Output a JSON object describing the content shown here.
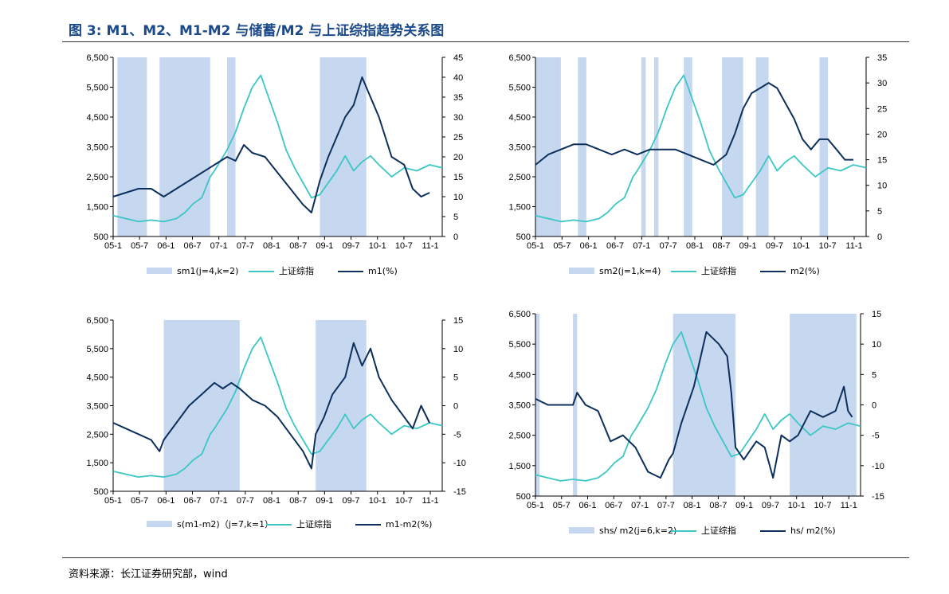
{
  "header": {
    "title": "图 3: M1、M2、M1-M2 与储蓄/M2 与上证综指趋势关系图"
  },
  "footer": {
    "source": "资料来源：长江证券研究部，wind"
  },
  "colors": {
    "shade": "#c6d8ef",
    "index_line": "#3cc6c6",
    "ratio_line": "#0d2f5c",
    "title": "#1b4a8a"
  },
  "chart_data": [
    {
      "id": "sm1",
      "type": "line",
      "x_ticks": [
        "05-1",
        "05-7",
        "06-1",
        "06-7",
        "07-1",
        "07-7",
        "08-1",
        "08-7",
        "09-1",
        "09-7",
        "10-1",
        "10-7",
        "11-1"
      ],
      "x_range": [
        0,
        78
      ],
      "left_axis": {
        "range": [
          500,
          6500
        ],
        "ticks": [
          "500",
          "1,500",
          "2,500",
          "3,500",
          "4,500",
          "5,500",
          "6,500"
        ]
      },
      "right_axis": {
        "range": [
          0,
          45
        ],
        "ticks": [
          "0",
          "5",
          "10",
          "15",
          "20",
          "25",
          "30",
          "35",
          "40",
          "45"
        ]
      },
      "legend": [
        "sm1(j=4,k=2)",
        "上证综指",
        "m1(%)"
      ],
      "shaded_periods": [
        [
          1,
          8
        ],
        [
          11,
          23
        ],
        [
          27,
          29
        ],
        [
          49,
          60
        ]
      ],
      "index_series": {
        "name": "上证综指",
        "axis": "left",
        "x": [
          0,
          3,
          6,
          9,
          12,
          15,
          17,
          19,
          21,
          23,
          24,
          27,
          29,
          31,
          33,
          35,
          37,
          39,
          41,
          43,
          45,
          47,
          49,
          51,
          53,
          55,
          57,
          59,
          61,
          63,
          66,
          69,
          72,
          75,
          78
        ],
        "values": [
          1200,
          1100,
          1000,
          1050,
          1000,
          1100,
          1300,
          1600,
          1800,
          2500,
          2700,
          3400,
          4000,
          4800,
          5500,
          5900,
          5100,
          4300,
          3400,
          2800,
          2300,
          1800,
          1900,
          2300,
          2700,
          3200,
          2700,
          3000,
          3200,
          2900,
          2500,
          2800,
          2700,
          2900,
          2800
        ]
      },
      "ratio_series": {
        "name": "m1(%)",
        "axis": "right",
        "x": [
          0,
          3,
          6,
          9,
          12,
          15,
          18,
          21,
          24,
          27,
          29,
          31,
          33,
          36,
          39,
          42,
          45,
          47,
          49,
          51,
          53,
          55,
          57,
          59,
          61,
          63,
          66,
          69,
          71,
          73,
          75
        ],
        "values": [
          10,
          11,
          12,
          12,
          10,
          12,
          14,
          16,
          18,
          20,
          19,
          23,
          21,
          20,
          16,
          12,
          8,
          6,
          14,
          20,
          25,
          30,
          33,
          40,
          35,
          30,
          20,
          18,
          12,
          10,
          11
        ]
      }
    },
    {
      "id": "sm2",
      "type": "line",
      "x_ticks": [
        "05-1",
        "05-7",
        "06-1",
        "06-7",
        "07-1",
        "07-7",
        "08-1",
        "08-7",
        "09-1",
        "09-7",
        "10-1",
        "10-7",
        "11-1"
      ],
      "x_range": [
        0,
        78
      ],
      "left_axis": {
        "range": [
          500,
          6500
        ],
        "ticks": [
          "500",
          "1,500",
          "2,500",
          "3,500",
          "4,500",
          "5,500",
          "6,500"
        ]
      },
      "right_axis": {
        "range": [
          0,
          35
        ],
        "ticks": [
          "0",
          "5",
          "10",
          "15",
          "20",
          "25",
          "30",
          "35"
        ]
      },
      "legend": [
        "sm2(j=1,k=4)",
        "上证综指",
        "m2(%)"
      ],
      "shaded_periods": [
        [
          0,
          6
        ],
        [
          10,
          12
        ],
        [
          25,
          26
        ],
        [
          28,
          29
        ],
        [
          35,
          37
        ],
        [
          44,
          49
        ],
        [
          52,
          55
        ],
        [
          67,
          69
        ]
      ],
      "index_series": {
        "name": "上证综指",
        "axis": "left",
        "x": [
          0,
          3,
          6,
          9,
          12,
          15,
          17,
          19,
          21,
          23,
          24,
          27,
          29,
          31,
          33,
          35,
          37,
          39,
          41,
          43,
          45,
          47,
          49,
          51,
          53,
          55,
          57,
          59,
          61,
          63,
          66,
          69,
          72,
          75,
          78
        ],
        "values": [
          1200,
          1100,
          1000,
          1050,
          1000,
          1100,
          1300,
          1600,
          1800,
          2500,
          2700,
          3400,
          4000,
          4800,
          5500,
          5900,
          5100,
          4300,
          3400,
          2800,
          2300,
          1800,
          1900,
          2300,
          2700,
          3200,
          2700,
          3000,
          3200,
          2900,
          2500,
          2800,
          2700,
          2900,
          2800
        ]
      },
      "ratio_series": {
        "name": "m2(%)",
        "axis": "right",
        "x": [
          0,
          3,
          6,
          9,
          12,
          15,
          18,
          21,
          24,
          27,
          30,
          33,
          36,
          39,
          42,
          45,
          47,
          49,
          51,
          53,
          55,
          57,
          59,
          61,
          63,
          65,
          67,
          69,
          71,
          73,
          75
        ],
        "values": [
          14,
          16,
          17,
          18,
          18,
          17,
          16,
          17,
          16,
          17,
          17,
          17,
          16,
          15,
          14,
          16,
          20,
          25,
          28,
          29,
          30,
          29,
          26,
          23,
          19,
          17,
          19,
          19,
          17,
          15,
          15
        ]
      }
    },
    {
      "id": "m1m2",
      "type": "line",
      "x_ticks": [
        "05-1",
        "05-7",
        "06-1",
        "06-7",
        "07-1",
        "07-7",
        "08-1",
        "08-7",
        "09-1",
        "09-7",
        "10-1",
        "10-7",
        "11-1"
      ],
      "x_range": [
        0,
        78
      ],
      "left_axis": {
        "range": [
          500,
          6500
        ],
        "ticks": [
          "500",
          "1,500",
          "2,500",
          "3,500",
          "4,500",
          "5,500",
          "6,500"
        ]
      },
      "right_axis": {
        "range": [
          -15,
          15
        ],
        "ticks": [
          "-15",
          "-10",
          "-5",
          "0",
          "5",
          "10",
          "15"
        ]
      },
      "legend": [
        "s(m1-m2)（j=7,k=1）",
        "上证综指",
        "m1-m2(%)"
      ],
      "shaded_periods": [
        [
          12,
          30
        ],
        [
          48,
          60
        ]
      ],
      "index_series": {
        "name": "上证综指",
        "axis": "left",
        "x": [
          0,
          3,
          6,
          9,
          12,
          15,
          17,
          19,
          21,
          23,
          24,
          27,
          29,
          31,
          33,
          35,
          37,
          39,
          41,
          43,
          45,
          47,
          49,
          51,
          53,
          55,
          57,
          59,
          61,
          63,
          66,
          69,
          72,
          75,
          78
        ],
        "values": [
          1200,
          1100,
          1000,
          1050,
          1000,
          1100,
          1300,
          1600,
          1800,
          2500,
          2700,
          3400,
          4000,
          4800,
          5500,
          5900,
          5100,
          4300,
          3400,
          2800,
          2300,
          1800,
          1900,
          2300,
          2700,
          3200,
          2700,
          3000,
          3200,
          2900,
          2500,
          2800,
          2700,
          2900,
          2800
        ]
      },
      "ratio_series": {
        "name": "m1-m2(%)",
        "axis": "right",
        "x": [
          0,
          3,
          6,
          9,
          11,
          12,
          15,
          18,
          21,
          24,
          26,
          28,
          30,
          33,
          36,
          39,
          42,
          45,
          47,
          48,
          50,
          52,
          55,
          57,
          59,
          61,
          63,
          66,
          69,
          71,
          73,
          75
        ],
        "values": [
          -3,
          -4,
          -5,
          -6,
          -8,
          -6,
          -3,
          0,
          2,
          4,
          3,
          4,
          3,
          1,
          0,
          -2,
          -5,
          -8,
          -11,
          -5,
          -2,
          2,
          5,
          11,
          7,
          10,
          5,
          1,
          -2,
          -4,
          0,
          -3
        ]
      }
    },
    {
      "id": "hsm2",
      "type": "line",
      "x_ticks": [
        "05-1",
        "05-7",
        "06-1",
        "06-7",
        "07-1",
        "07-7",
        "08-1",
        "08-7",
        "09-1",
        "09-7",
        "10-1",
        "10-7",
        "11-1"
      ],
      "x_range": [
        0,
        78
      ],
      "left_axis": {
        "range": [
          500,
          6500
        ],
        "ticks": [
          "500",
          "1,500",
          "2,500",
          "3,500",
          "4,500",
          "5,500",
          "6,500"
        ]
      },
      "right_axis": {
        "range": [
          -15,
          15
        ],
        "ticks": [
          "-15",
          "-10",
          "-5",
          "0",
          "5",
          "10",
          "15"
        ]
      },
      "legend": [
        "shs/ m2(j=6,k=2)",
        "上证综指",
        "hs/ m2(%)"
      ],
      "shaded_periods": [
        [
          0,
          1
        ],
        [
          9,
          10
        ],
        [
          33,
          48
        ],
        [
          61,
          77
        ]
      ],
      "index_series": {
        "name": "上证综指",
        "axis": "left",
        "x": [
          0,
          3,
          6,
          9,
          12,
          15,
          17,
          19,
          21,
          23,
          24,
          27,
          29,
          31,
          33,
          35,
          37,
          39,
          41,
          43,
          45,
          47,
          49,
          51,
          53,
          55,
          57,
          59,
          61,
          63,
          66,
          69,
          72,
          75,
          78
        ],
        "values": [
          1200,
          1100,
          1000,
          1050,
          1000,
          1100,
          1300,
          1600,
          1800,
          2500,
          2700,
          3400,
          4000,
          4800,
          5500,
          5900,
          5100,
          4300,
          3400,
          2800,
          2300,
          1800,
          1900,
          2300,
          2700,
          3200,
          2700,
          3000,
          3200,
          2900,
          2500,
          2800,
          2700,
          2900,
          2800
        ]
      },
      "ratio_series": {
        "name": "hs/ m2(%)",
        "axis": "right",
        "x": [
          0,
          3,
          6,
          9,
          10,
          12,
          15,
          18,
          21,
          24,
          27,
          30,
          32,
          33,
          35,
          38,
          41,
          44,
          46,
          47,
          48,
          50,
          53,
          55,
          57,
          59,
          61,
          63,
          66,
          69,
          72,
          74,
          75,
          76
        ],
        "values": [
          1,
          0,
          0,
          0,
          2,
          0,
          -1,
          -6,
          -5,
          -7,
          -11,
          -12,
          -9,
          -8,
          -3,
          3,
          12,
          10,
          8,
          2,
          -7,
          -9,
          -6,
          -7,
          -12,
          -5,
          -6,
          -5,
          -1,
          -2,
          -1,
          3,
          -1,
          -2
        ]
      }
    }
  ]
}
